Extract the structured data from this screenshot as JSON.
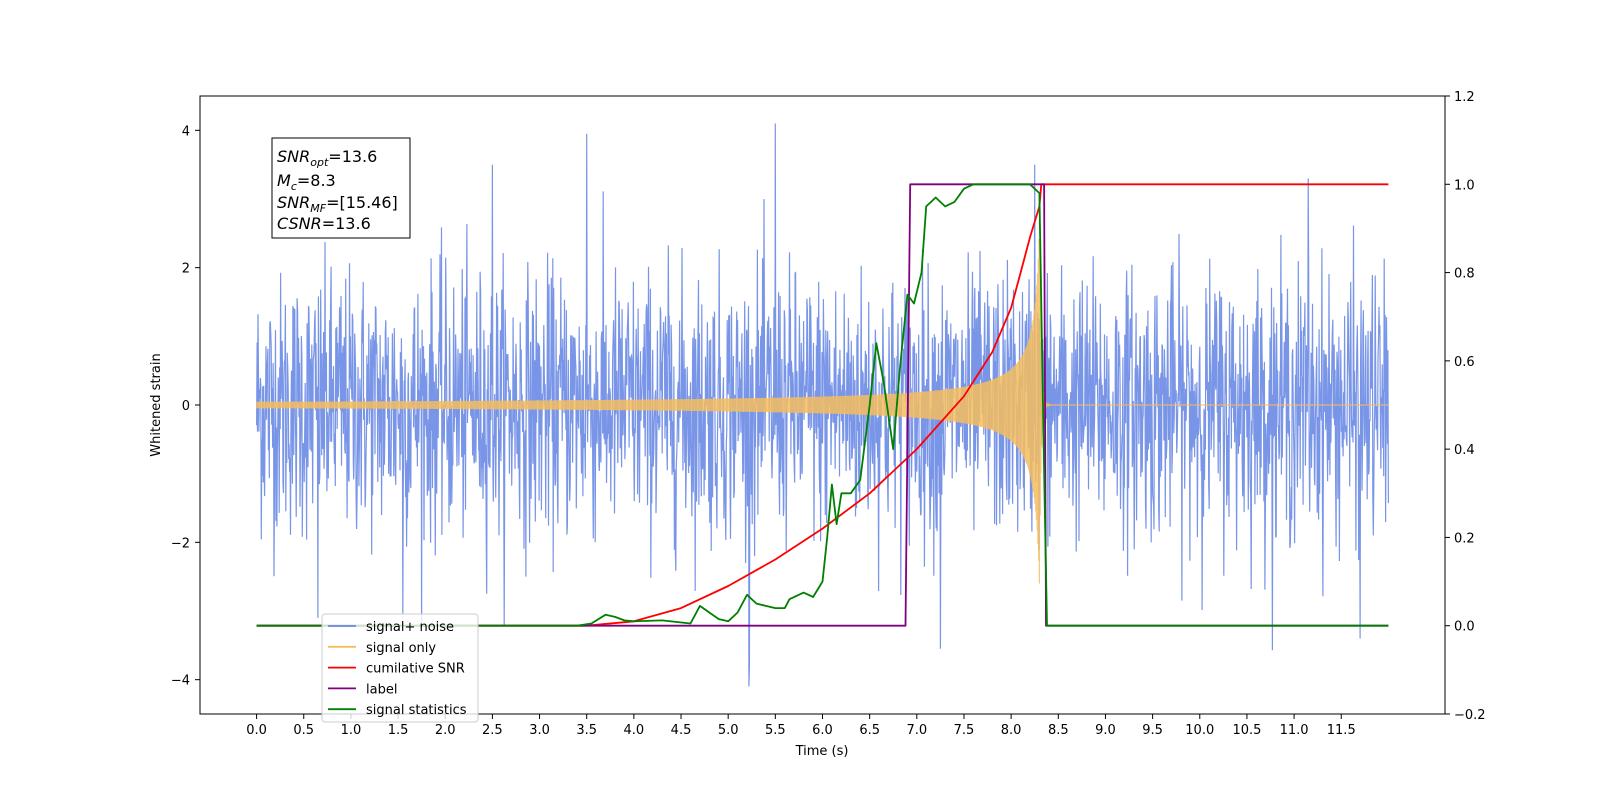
{
  "chart_data": {
    "type": "line",
    "xlabel": "Time (s)",
    "ylabel": "Whitened strain",
    "xlim": [
      -0.6,
      12.6
    ],
    "ylim": [
      -4.5,
      4.5
    ],
    "y2lim": [
      -0.2,
      1.2
    ],
    "x_ticks": [
      0.0,
      0.5,
      1.0,
      1.5,
      2.0,
      2.5,
      3.0,
      3.5,
      4.0,
      4.5,
      5.0,
      5.5,
      6.0,
      6.5,
      7.0,
      7.5,
      8.0,
      8.5,
      9.0,
      9.5,
      10.0,
      10.5,
      11.0,
      11.5
    ],
    "x_tick_labels": [
      "0.0",
      "0.5",
      "1.0",
      "1.5",
      "2.0",
      "2.5",
      "3.0",
      "3.5",
      "4.0",
      "4.5",
      "5.0",
      "5.5",
      "6.0",
      "6.5",
      "7.0",
      "7.5",
      "8.0",
      "8.5",
      "9.0",
      "9.5",
      "10.0",
      "10.5",
      "11.0",
      "11.5"
    ],
    "y_ticks": [
      -4,
      -2,
      0,
      2,
      4
    ],
    "y_tick_labels": [
      "−4",
      "−2",
      "0",
      "2",
      "4"
    ],
    "y2_ticks": [
      -0.2,
      0.0,
      0.2,
      0.4,
      0.6,
      0.8,
      1.0,
      1.2
    ],
    "y2_tick_labels": [
      "−0.2",
      "0.0",
      "0.2",
      "0.4",
      "0.6",
      "0.8",
      "1.0",
      "1.2"
    ],
    "legend_position": "lower-left",
    "grid": false,
    "annotation": {
      "lines": [
        {
          "main": "SNR",
          "sub": "opt",
          "value": "=13.6"
        },
        {
          "main": "M",
          "sub": "c",
          "value": "=8.3"
        },
        {
          "main": "SNR",
          "sub": "MF",
          "value": "=[15.46]"
        },
        {
          "main": "CSNR",
          "sub": "",
          "value": "=13.6"
        }
      ]
    },
    "series": [
      {
        "name": "signal+ noise",
        "axis": "left",
        "color": "#6a89e4",
        "kind": "noise",
        "x_range": [
          0.0,
          12.0
        ],
        "noise_sigma": 1.0,
        "peaks": [
          [
            3.5,
            3.95
          ],
          [
            5.5,
            4.1
          ],
          [
            5.22,
            -4.1
          ],
          [
            8.25,
            3.5
          ],
          [
            11.15,
            3.3
          ],
          [
            7.25,
            -3.55
          ],
          [
            11.7,
            -3.4
          ],
          [
            1.55,
            -3.05
          ],
          [
            0.65,
            -3.1
          ],
          [
            2.5,
            3.5
          ]
        ]
      },
      {
        "name": "signal only",
        "axis": "left",
        "color": "#f4bd5f",
        "kind": "chirp",
        "x_range": [
          0.0,
          12.0
        ],
        "merger_time": 8.3,
        "peak_amplitude": 2.6
      },
      {
        "name": "cumilative SNR",
        "axis": "right",
        "color": "#ff0000",
        "x": [
          0.0,
          3.5,
          4.0,
          4.5,
          5.0,
          5.5,
          6.0,
          6.5,
          7.0,
          7.5,
          7.8,
          8.0,
          8.1,
          8.2,
          8.3,
          8.32,
          8.35,
          12.0
        ],
        "y": [
          0.0,
          0.0,
          0.01,
          0.04,
          0.09,
          0.15,
          0.22,
          0.3,
          0.4,
          0.52,
          0.62,
          0.72,
          0.8,
          0.88,
          0.95,
          1.0,
          1.0,
          1.0
        ]
      },
      {
        "name": "label",
        "axis": "right",
        "color": "#800080",
        "x": [
          0.0,
          6.88,
          6.93,
          8.35,
          8.37,
          12.0
        ],
        "y": [
          0.0,
          0.0,
          1.0,
          1.0,
          0.0,
          0.0
        ]
      },
      {
        "name": "signal statistics",
        "axis": "right",
        "color": "#008000",
        "x": [
          0.0,
          3.4,
          3.55,
          3.7,
          3.8,
          3.9,
          4.0,
          4.3,
          4.6,
          4.7,
          4.8,
          4.9,
          5.0,
          5.1,
          5.2,
          5.3,
          5.4,
          5.5,
          5.6,
          5.65,
          5.8,
          5.9,
          6.0,
          6.05,
          6.1,
          6.15,
          6.2,
          6.3,
          6.4,
          6.5,
          6.57,
          6.65,
          6.75,
          6.82,
          6.9,
          6.97,
          7.05,
          7.1,
          7.2,
          7.3,
          7.4,
          7.5,
          7.6,
          8.2,
          8.3,
          8.35,
          8.38,
          8.4,
          12.0
        ],
        "y": [
          0.0,
          0.0,
          0.005,
          0.025,
          0.02,
          0.012,
          0.01,
          0.012,
          0.005,
          0.045,
          0.03,
          0.015,
          0.01,
          0.03,
          0.07,
          0.05,
          0.045,
          0.04,
          0.04,
          0.06,
          0.075,
          0.065,
          0.1,
          0.2,
          0.32,
          0.23,
          0.3,
          0.3,
          0.33,
          0.5,
          0.64,
          0.55,
          0.4,
          0.58,
          0.75,
          0.73,
          0.8,
          0.95,
          0.97,
          0.95,
          0.96,
          0.99,
          1.0,
          1.0,
          0.98,
          0.35,
          0.0,
          0.0,
          0.0
        ]
      }
    ],
    "legend": {
      "entries": [
        {
          "label": "signal+ noise",
          "color": "#6a89e4"
        },
        {
          "label": "signal only",
          "color": "#f4bd5f"
        },
        {
          "label": "cumilative SNR",
          "color": "#ff0000"
        },
        {
          "label": "label",
          "color": "#800080"
        },
        {
          "label": "signal statistics",
          "color": "#008000"
        }
      ]
    }
  }
}
